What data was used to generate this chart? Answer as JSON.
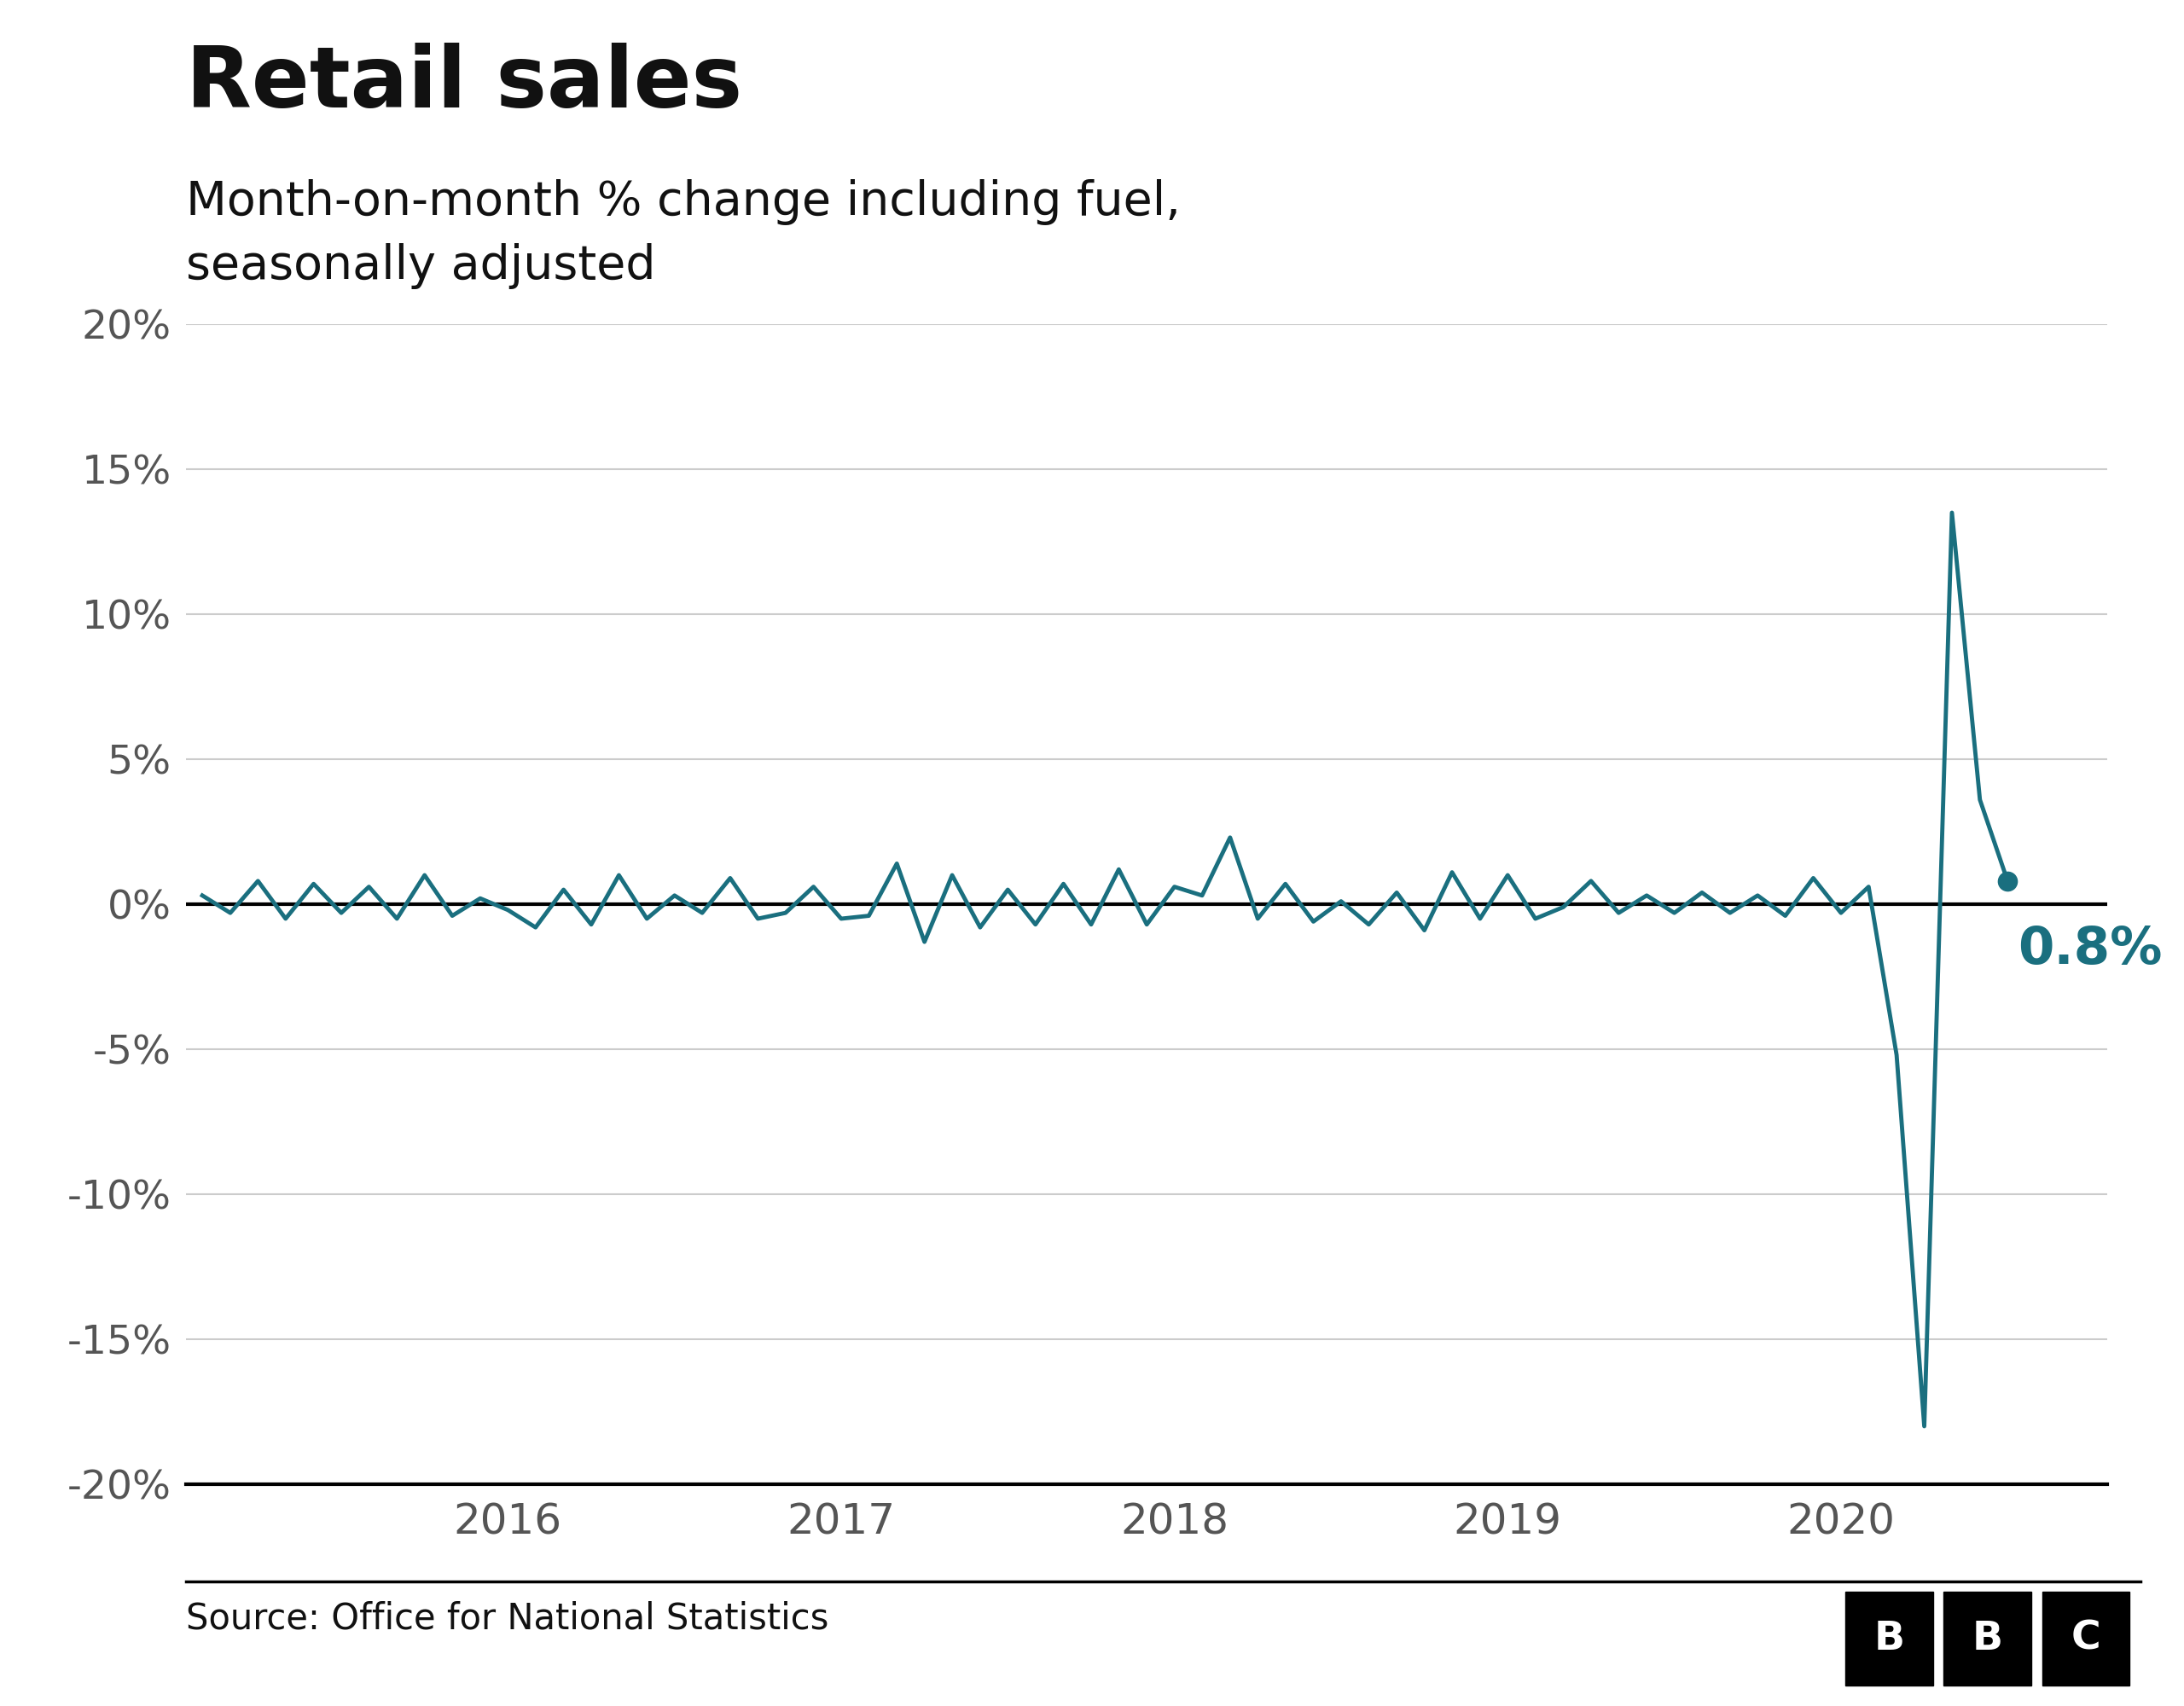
{
  "title": "Retail sales",
  "subtitle": "Month-on-month % change including fuel,\nseasonally adjusted",
  "source": "Source: Office for National Statistics",
  "line_color": "#1a6f7f",
  "background_color": "#ffffff",
  "annotation_value": "0.8%",
  "annotation_color": "#1a6f7f",
  "ylim": [
    -20,
    20
  ],
  "yticks": [
    -20,
    -15,
    -10,
    -5,
    0,
    5,
    10,
    15,
    20
  ],
  "xtick_years": [
    2016,
    2017,
    2018,
    2019,
    2020
  ],
  "data": [
    [
      2015.083,
      0.3
    ],
    [
      2015.167,
      -0.3
    ],
    [
      2015.25,
      0.8
    ],
    [
      2015.333,
      -0.5
    ],
    [
      2015.417,
      0.7
    ],
    [
      2015.5,
      -0.3
    ],
    [
      2015.583,
      0.6
    ],
    [
      2015.667,
      -0.5
    ],
    [
      2015.75,
      1.0
    ],
    [
      2015.833,
      -0.4
    ],
    [
      2015.917,
      0.2
    ],
    [
      2016.0,
      -0.2
    ],
    [
      2016.083,
      -0.8
    ],
    [
      2016.167,
      0.5
    ],
    [
      2016.25,
      -0.7
    ],
    [
      2016.333,
      1.0
    ],
    [
      2016.417,
      -0.5
    ],
    [
      2016.5,
      0.3
    ],
    [
      2016.583,
      -0.3
    ],
    [
      2016.667,
      0.9
    ],
    [
      2016.75,
      -0.5
    ],
    [
      2016.833,
      -0.3
    ],
    [
      2016.917,
      0.6
    ],
    [
      2017.0,
      -0.5
    ],
    [
      2017.083,
      -0.4
    ],
    [
      2017.167,
      1.4
    ],
    [
      2017.25,
      -1.3
    ],
    [
      2017.333,
      1.0
    ],
    [
      2017.417,
      -0.8
    ],
    [
      2017.5,
      0.5
    ],
    [
      2017.583,
      -0.7
    ],
    [
      2017.667,
      0.7
    ],
    [
      2017.75,
      -0.7
    ],
    [
      2017.833,
      1.2
    ],
    [
      2017.917,
      -0.7
    ],
    [
      2018.0,
      0.6
    ],
    [
      2018.083,
      0.3
    ],
    [
      2018.167,
      2.3
    ],
    [
      2018.25,
      -0.5
    ],
    [
      2018.333,
      0.7
    ],
    [
      2018.417,
      -0.6
    ],
    [
      2018.5,
      0.1
    ],
    [
      2018.583,
      -0.7
    ],
    [
      2018.667,
      0.4
    ],
    [
      2018.75,
      -0.9
    ],
    [
      2018.833,
      1.1
    ],
    [
      2018.917,
      -0.5
    ],
    [
      2019.0,
      1.0
    ],
    [
      2019.083,
      -0.5
    ],
    [
      2019.167,
      -0.1
    ],
    [
      2019.25,
      0.8
    ],
    [
      2019.333,
      -0.3
    ],
    [
      2019.417,
      0.3
    ],
    [
      2019.5,
      -0.3
    ],
    [
      2019.583,
      0.4
    ],
    [
      2019.667,
      -0.3
    ],
    [
      2019.75,
      0.3
    ],
    [
      2019.833,
      -0.4
    ],
    [
      2019.917,
      0.9
    ],
    [
      2020.0,
      -0.3
    ],
    [
      2020.083,
      0.6
    ],
    [
      2020.167,
      -5.2
    ],
    [
      2020.25,
      -18.0
    ],
    [
      2020.333,
      13.5
    ],
    [
      2020.417,
      3.6
    ],
    [
      2020.5,
      0.8
    ]
  ]
}
